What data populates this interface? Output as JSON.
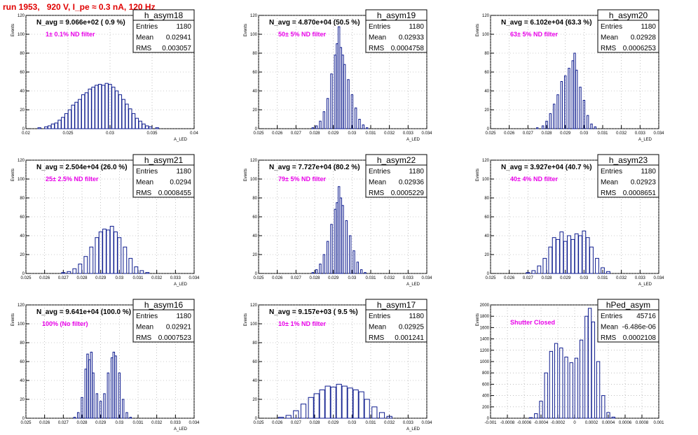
{
  "header": {
    "title": "run 1953,   920 V, I_pe ≈ 0.3 nA, 120 Hz"
  },
  "chart_data": [
    {
      "type": "bar",
      "histname": "h_asym18",
      "entries": "1180",
      "mean": "0.02941",
      "rms": "0.003057",
      "navg": "N_avg = 9.066e+02 ( 0.9 %)",
      "filter": "1± 0.1% ND filter",
      "ylabel": "Events",
      "xlabel": "A_LED",
      "xlim": [
        0.0175,
        0.0425
      ],
      "ylim": [
        0,
        120
      ],
      "xticks": [
        "0.02",
        "0.025",
        "0.03",
        "0.035",
        "0.04"
      ],
      "yticks": [
        "0",
        "20",
        "40",
        "60",
        "80",
        "100",
        "120"
      ],
      "values": [
        [
          0.0195,
          1
        ],
        [
          0.0205,
          2
        ],
        [
          0.021,
          3
        ],
        [
          0.0215,
          5
        ],
        [
          0.022,
          6
        ],
        [
          0.0225,
          9
        ],
        [
          0.023,
          12
        ],
        [
          0.0235,
          16
        ],
        [
          0.024,
          20
        ],
        [
          0.0245,
          25
        ],
        [
          0.025,
          28
        ],
        [
          0.0255,
          31
        ],
        [
          0.026,
          36
        ],
        [
          0.0265,
          38
        ],
        [
          0.027,
          42
        ],
        [
          0.0275,
          44
        ],
        [
          0.028,
          46
        ],
        [
          0.0285,
          47
        ],
        [
          0.029,
          46
        ],
        [
          0.0295,
          48
        ],
        [
          0.03,
          47
        ],
        [
          0.0305,
          44
        ],
        [
          0.031,
          40
        ],
        [
          0.0315,
          36
        ],
        [
          0.032,
          31
        ],
        [
          0.0325,
          26
        ],
        [
          0.033,
          21
        ],
        [
          0.0335,
          16
        ],
        [
          0.034,
          11
        ],
        [
          0.0345,
          8
        ],
        [
          0.035,
          5
        ],
        [
          0.0355,
          3
        ],
        [
          0.036,
          2
        ],
        [
          0.037,
          1
        ]
      ]
    },
    {
      "type": "bar",
      "histname": "h_asym19",
      "entries": "1180",
      "mean": "0.02933",
      "rms": "0.0004758",
      "navg": "N_avg = 4.870e+04 (50.5 %)",
      "filter": "50± 5% ND filter",
      "ylabel": "Events",
      "xlabel": "A_LED",
      "xlim": [
        0.025,
        0.034
      ],
      "ylim": [
        0,
        120
      ],
      "xticks": [
        "0.025",
        "0.026",
        "0.027",
        "0.028",
        "0.029",
        "0.03",
        "0.031",
        "0.032",
        "0.033",
        "0.034"
      ],
      "yticks": [
        "0",
        "20",
        "40",
        "60",
        "80",
        "100",
        "120"
      ],
      "values": [
        [
          0.0279,
          1
        ],
        [
          0.0281,
          3
        ],
        [
          0.0283,
          8
        ],
        [
          0.0285,
          18
        ],
        [
          0.0287,
          32
        ],
        [
          0.0289,
          58
        ],
        [
          0.0291,
          78
        ],
        [
          0.0292,
          90
        ],
        [
          0.0293,
          108
        ],
        [
          0.0294,
          86
        ],
        [
          0.0295,
          78
        ],
        [
          0.0296,
          68
        ],
        [
          0.0298,
          52
        ],
        [
          0.03,
          36
        ],
        [
          0.0302,
          22
        ],
        [
          0.0304,
          10
        ],
        [
          0.0306,
          4
        ],
        [
          0.0308,
          1
        ]
      ]
    },
    {
      "type": "bar",
      "histname": "h_asym20",
      "entries": "1180",
      "mean": "0.02928",
      "rms": "0.0006253",
      "navg": "N_avg = 6.102e+04 (63.3 %)",
      "filter": "63± 5% ND filter",
      "ylabel": "Events",
      "xlabel": "A_LED",
      "xlim": [
        0.025,
        0.034
      ],
      "ylim": [
        0,
        120
      ],
      "xticks": [
        "0.025",
        "0.026",
        "0.027",
        "0.028",
        "0.029",
        "0.03",
        "0.031",
        "0.032",
        "0.033",
        "0.034"
      ],
      "yticks": [
        "0",
        "20",
        "40",
        "60",
        "80",
        "100",
        "120"
      ],
      "values": [
        [
          0.0275,
          1
        ],
        [
          0.0278,
          3
        ],
        [
          0.028,
          8
        ],
        [
          0.0282,
          16
        ],
        [
          0.0284,
          26
        ],
        [
          0.0286,
          36
        ],
        [
          0.0288,
          50
        ],
        [
          0.029,
          56
        ],
        [
          0.0292,
          64
        ],
        [
          0.0294,
          72
        ],
        [
          0.0295,
          80
        ],
        [
          0.0296,
          62
        ],
        [
          0.0298,
          44
        ],
        [
          0.03,
          30
        ],
        [
          0.0302,
          14
        ],
        [
          0.0304,
          5
        ],
        [
          0.0306,
          2
        ]
      ]
    },
    {
      "type": "bar",
      "histname": "h_asym21",
      "entries": "1180",
      "mean": "0.0294",
      "rms": "0.0008455",
      "navg": "N_avg = 2.504e+04 (26.0 %)",
      "filter": "25± 2.5% ND filter",
      "ylabel": "Events",
      "xlabel": "A_LED",
      "xlim": [
        0.025,
        0.034
      ],
      "ylim": [
        0,
        120
      ],
      "xticks": [
        "0.025",
        "0.026",
        "0.027",
        "0.028",
        "0.029",
        "0.03",
        "0.031",
        "0.032",
        "0.033",
        "0.034"
      ],
      "yticks": [
        "0",
        "20",
        "40",
        "60",
        "80",
        "100",
        "120"
      ],
      "values": [
        [
          0.027,
          1
        ],
        [
          0.0273,
          2
        ],
        [
          0.0276,
          5
        ],
        [
          0.0279,
          10
        ],
        [
          0.0282,
          18
        ],
        [
          0.0285,
          28
        ],
        [
          0.0288,
          38
        ],
        [
          0.029,
          44
        ],
        [
          0.0292,
          47
        ],
        [
          0.0294,
          46
        ],
        [
          0.0296,
          50
        ],
        [
          0.0298,
          44
        ],
        [
          0.03,
          38
        ],
        [
          0.0303,
          28
        ],
        [
          0.0306,
          16
        ],
        [
          0.0309,
          7
        ],
        [
          0.0312,
          3
        ],
        [
          0.0315,
          1
        ]
      ]
    },
    {
      "type": "bar",
      "histname": "h_asym22",
      "entries": "1180",
      "mean": "0.02936",
      "rms": "0.0005229",
      "navg": "N_avg = 7.727e+04 (80.2 %)",
      "filter": "79± 5% ND filter",
      "ylabel": "Events",
      "xlabel": "A_LED",
      "xlim": [
        0.025,
        0.034
      ],
      "ylim": [
        0,
        120
      ],
      "xticks": [
        "0.025",
        "0.026",
        "0.027",
        "0.028",
        "0.029",
        "0.03",
        "0.031",
        "0.032",
        "0.033",
        "0.034"
      ],
      "yticks": [
        "0",
        "20",
        "40",
        "60",
        "80",
        "100",
        "120"
      ],
      "values": [
        [
          0.0279,
          1
        ],
        [
          0.0281,
          4
        ],
        [
          0.0283,
          10
        ],
        [
          0.0285,
          20
        ],
        [
          0.0287,
          34
        ],
        [
          0.0289,
          52
        ],
        [
          0.0291,
          68
        ],
        [
          0.0292,
          75
        ],
        [
          0.0293,
          92
        ],
        [
          0.0294,
          80
        ],
        [
          0.0295,
          72
        ],
        [
          0.0297,
          56
        ],
        [
          0.0299,
          40
        ],
        [
          0.0301,
          24
        ],
        [
          0.0303,
          12
        ],
        [
          0.0305,
          4
        ],
        [
          0.0307,
          1
        ]
      ]
    },
    {
      "type": "bar",
      "histname": "h_asym23",
      "entries": "1180",
      "mean": "0.02923",
      "rms": "0.0008651",
      "navg": "N_avg = 3.927e+04 (40.7 %)",
      "filter": "40± 4% ND filter",
      "ylabel": "Events",
      "xlabel": "A_LED",
      "xlim": [
        0.025,
        0.034
      ],
      "ylim": [
        0,
        120
      ],
      "xticks": [
        "0.025",
        "0.026",
        "0.027",
        "0.028",
        "0.029",
        "0.03",
        "0.031",
        "0.032",
        "0.033",
        "0.034"
      ],
      "yticks": [
        "0",
        "20",
        "40",
        "60",
        "80",
        "100",
        "120"
      ],
      "values": [
        [
          0.027,
          1
        ],
        [
          0.0273,
          3
        ],
        [
          0.0276,
          8
        ],
        [
          0.0279,
          16
        ],
        [
          0.0282,
          28
        ],
        [
          0.0284,
          38
        ],
        [
          0.0286,
          36
        ],
        [
          0.0288,
          44
        ],
        [
          0.029,
          34
        ],
        [
          0.0292,
          40
        ],
        [
          0.0294,
          36
        ],
        [
          0.0296,
          42
        ],
        [
          0.0298,
          40
        ],
        [
          0.03,
          45
        ],
        [
          0.0302,
          38
        ],
        [
          0.0304,
          28
        ],
        [
          0.0307,
          16
        ],
        [
          0.031,
          6
        ],
        [
          0.0313,
          2
        ]
      ]
    },
    {
      "type": "bar",
      "histname": "h_asym16",
      "entries": "1180",
      "mean": "0.02921",
      "rms": "0.0007523",
      "navg": "N_avg = 9.641e+04 (100.0 %)",
      "filter": "100% (No filter)",
      "ylabel": "Events",
      "xlabel": "A_LED",
      "xlim": [
        0.025,
        0.034
      ],
      "ylim": [
        0,
        120
      ],
      "xticks": [
        "0.025",
        "0.026",
        "0.027",
        "0.028",
        "0.029",
        "0.03",
        "0.031",
        "0.032",
        "0.033",
        "0.034"
      ],
      "yticks": [
        "0",
        "20",
        "40",
        "60",
        "80",
        "100",
        "120"
      ],
      "values": [
        [
          0.0276,
          1
        ],
        [
          0.0278,
          6
        ],
        [
          0.028,
          22
        ],
        [
          0.0282,
          52
        ],
        [
          0.0283,
          68
        ],
        [
          0.0284,
          62
        ],
        [
          0.0285,
          70
        ],
        [
          0.0286,
          48
        ],
        [
          0.0288,
          26
        ],
        [
          0.029,
          18
        ],
        [
          0.0292,
          26
        ],
        [
          0.0294,
          48
        ],
        [
          0.0296,
          64
        ],
        [
          0.0297,
          70
        ],
        [
          0.0298,
          66
        ],
        [
          0.03,
          48
        ],
        [
          0.0302,
          20
        ],
        [
          0.0304,
          6
        ],
        [
          0.0306,
          1
        ]
      ]
    },
    {
      "type": "bar",
      "histname": "h_asym17",
      "entries": "1180",
      "mean": "0.02925",
      "rms": "0.001241",
      "navg": "N_avg = 9.157e+03 ( 9.5 %)",
      "filter": "10± 1% ND filter",
      "ylabel": "Events",
      "xlabel": "A_LED",
      "xlim": [
        0.025,
        0.034
      ],
      "ylim": [
        0,
        120
      ],
      "xticks": [
        "0.025",
        "0.026",
        "0.027",
        "0.028",
        "0.029",
        "0.03",
        "0.031",
        "0.032",
        "0.033",
        "0.034"
      ],
      "yticks": [
        "0",
        "20",
        "40",
        "60",
        "80",
        "100",
        "120"
      ],
      "values": [
        [
          0.0262,
          1
        ],
        [
          0.0266,
          3
        ],
        [
          0.027,
          8
        ],
        [
          0.0274,
          15
        ],
        [
          0.0278,
          22
        ],
        [
          0.0281,
          26
        ],
        [
          0.0284,
          30
        ],
        [
          0.0287,
          34
        ],
        [
          0.029,
          33
        ],
        [
          0.0293,
          36
        ],
        [
          0.0296,
          34
        ],
        [
          0.0299,
          32
        ],
        [
          0.0302,
          30
        ],
        [
          0.0305,
          28
        ],
        [
          0.0308,
          20
        ],
        [
          0.0312,
          12
        ],
        [
          0.0316,
          6
        ],
        [
          0.032,
          2
        ]
      ]
    },
    {
      "type": "bar",
      "histname": "hPed_asym",
      "entries": "45716",
      "mean": "-6.486e-06",
      "rms": "0.0002108",
      "navg": "",
      "filter": "Shutter Closed",
      "ylabel": "Events",
      "xlabel": "",
      "xlim": [
        -0.001,
        0.001
      ],
      "ylim": [
        0,
        2000
      ],
      "xticks": [
        "-0.001",
        "-0.0008",
        "-0.0006",
        "-0.0004",
        "-0.0002",
        "0",
        "0.0002",
        "0.0004",
        "0.0006",
        "0.0008",
        "0.001"
      ],
      "yticks": [
        "0",
        "200",
        "400",
        "600",
        "800",
        "1000",
        "1200",
        "1400",
        "1600",
        "1800",
        "2000"
      ],
      "values": [
        [
          -0.00052,
          10
        ],
        [
          -0.00046,
          80
        ],
        [
          -0.0004,
          300
        ],
        [
          -0.00034,
          800
        ],
        [
          -0.00028,
          1180
        ],
        [
          -0.00022,
          1320
        ],
        [
          -0.00016,
          1240
        ],
        [
          -0.0001,
          1080
        ],
        [
          -4e-05,
          980
        ],
        [
          2e-05,
          1060
        ],
        [
          8e-05,
          1380
        ],
        [
          0.00014,
          1800
        ],
        [
          0.00018,
          1940
        ],
        [
          0.00022,
          1700
        ],
        [
          0.00028,
          1000
        ],
        [
          0.00034,
          400
        ],
        [
          0.0004,
          100
        ],
        [
          0.00046,
          20
        ]
      ]
    }
  ],
  "colors": {
    "hist": "#0d1b8e",
    "title": "#e00000",
    "filter": "#e800e8",
    "axis": "#000000"
  }
}
